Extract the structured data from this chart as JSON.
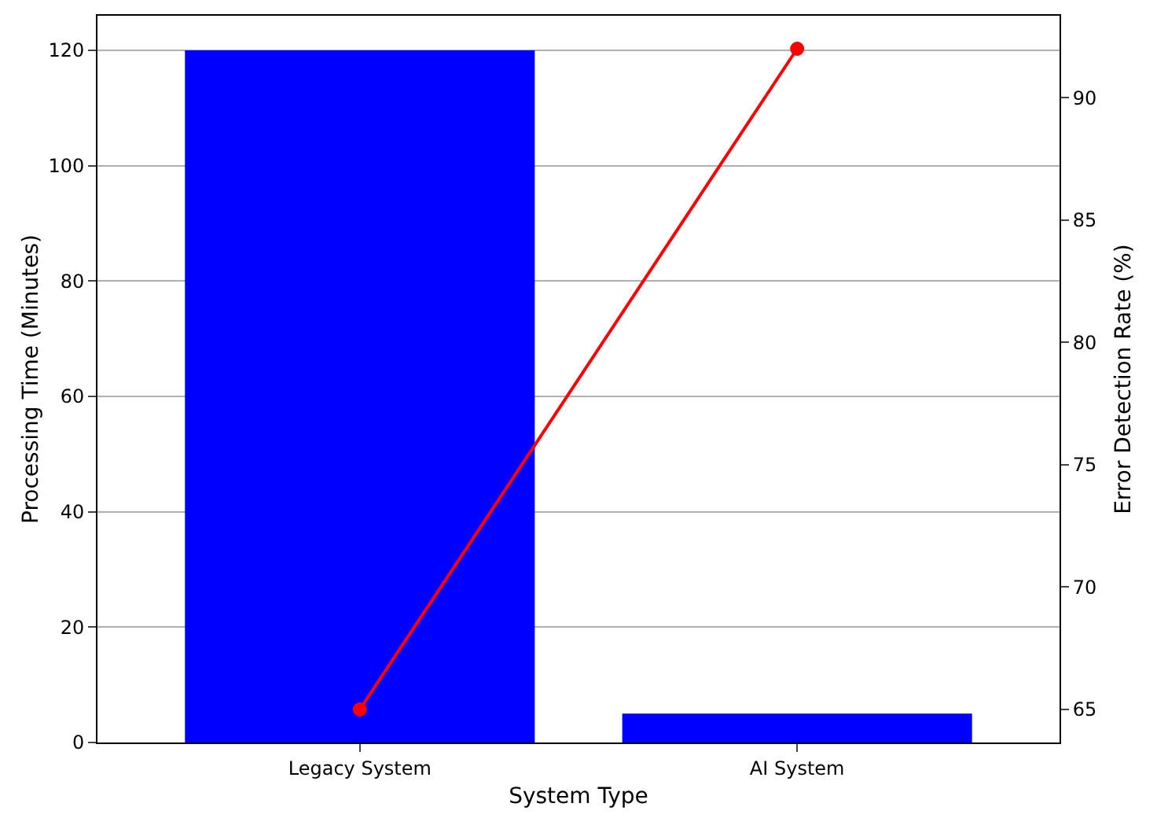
{
  "chart_data": {
    "type": "bar",
    "xlabel": "System Type",
    "ylabel": "Processing Time (Minutes)",
    "y2label": "Error Detection Rate (%)",
    "categories": [
      "Legacy System",
      "AI System"
    ],
    "series": [
      {
        "color": "#0000ff",
        "values": [
          120,
          5
        ]
      },
      {
        "type": "line",
        "color": "#ff0000",
        "values": [
          65,
          92
        ],
        "axis": "y2",
        "marker": "circle"
      }
    ],
    "ylim": [
      0,
      126
    ],
    "yticks": [
      0,
      20,
      40,
      60,
      80,
      100,
      120
    ],
    "y2lim": [
      63.65,
      93.35
    ],
    "y2ticks": [
      65,
      70,
      75,
      80,
      85,
      90
    ],
    "grid": "y"
  }
}
